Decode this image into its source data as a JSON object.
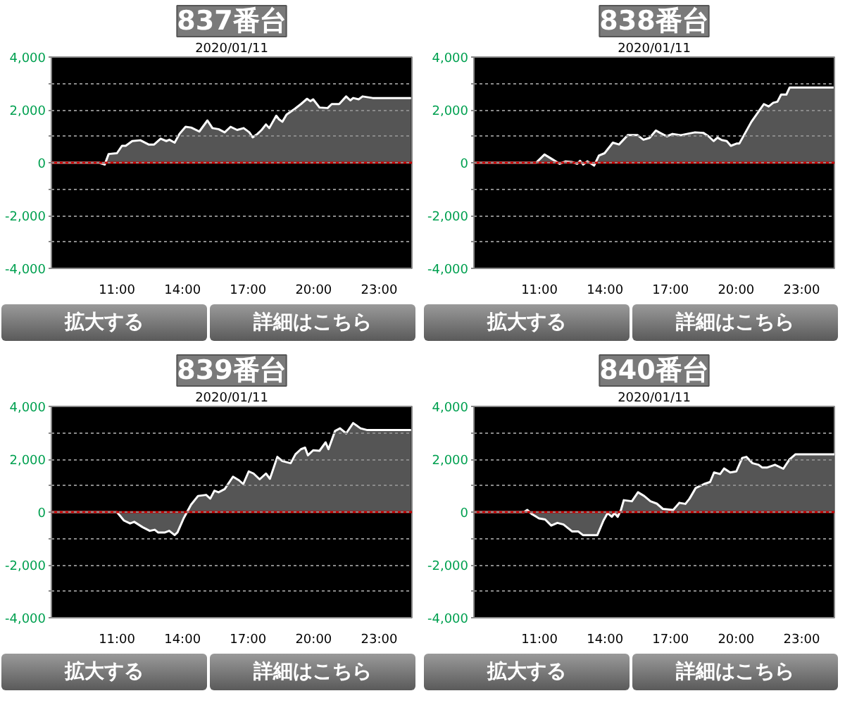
{
  "chart_data": [
    {
      "type": "area",
      "title": "837番台",
      "subtitle": "2020/01/11",
      "annotations": [
        "拡大する",
        "詳細はこちら"
      ],
      "grid": "y",
      "xlim": [
        8,
        24.5
      ],
      "ylim": [
        -4000,
        4000
      ],
      "xticks": [
        {
          "value": 11,
          "label": "11:00"
        },
        {
          "value": 14,
          "label": "14:00"
        },
        {
          "value": 17,
          "label": "17:00"
        },
        {
          "value": 20,
          "label": "20:00"
        },
        {
          "value": 23,
          "label": "23:00"
        }
      ],
      "yticks": [
        {
          "value": -4000,
          "label": "-4,000"
        },
        {
          "value": -3000,
          "label": null
        },
        {
          "value": -2000,
          "label": "-2,000"
        },
        {
          "value": -1000,
          "label": null
        },
        0,
        {
          "value": 1000,
          "label": null
        },
        {
          "value": 2000,
          "label": "2,000"
        },
        {
          "value": 3000,
          "label": null
        },
        {
          "value": 4000,
          "label": "4,000"
        }
      ],
      "ref_lines": [
        {
          "axis": "y",
          "value": 0,
          "color": "#cc0000"
        }
      ],
      "series": [
        {
          "color": "#555555",
          "x": [
            8,
            10.19,
            10.44,
            10.62,
            11,
            11.23,
            11.4,
            11.7,
            12.07,
            12.45,
            12.7,
            13.0,
            13.26,
            13.4,
            13.64,
            13.86,
            14.14,
            14.4,
            14.77,
            15.14,
            15.37,
            15.65,
            15.93,
            16.2,
            16.5,
            16.8,
            17.06,
            17.21,
            17.43,
            17.62,
            17.82,
            17.97,
            18.29,
            18.42,
            18.57,
            18.76,
            19.14,
            19.42,
            19.7,
            19.85,
            19.98,
            20.27,
            20.64,
            20.83,
            21.17,
            21.49,
            21.68,
            21.81,
            22.06,
            22.24,
            22.7,
            24.46
          ],
          "values": [
            0,
            0,
            -70,
            330,
            360,
            640,
            640,
            820,
            850,
            690,
            690,
            910,
            820,
            870,
            760,
            1090,
            1360,
            1330,
            1180,
            1600,
            1310,
            1270,
            1150,
            1360,
            1240,
            1310,
            1150,
            960,
            1090,
            1240,
            1450,
            1310,
            1780,
            1640,
            1550,
            1820,
            2040,
            2220,
            2420,
            2330,
            2400,
            2090,
            2070,
            2220,
            2220,
            2510,
            2360,
            2450,
            2400,
            2510,
            2450,
            2450
          ]
        }
      ]
    },
    {
      "type": "area",
      "title": "838番台",
      "subtitle": "2020/01/11",
      "annotations": [
        "拡大する",
        "詳細はこちら"
      ],
      "grid": "y",
      "xlim": [
        8,
        24.5
      ],
      "ylim": [
        -4000,
        4000
      ],
      "xticks": [
        {
          "value": 11,
          "label": "11:00"
        },
        {
          "value": 14,
          "label": "14:00"
        },
        {
          "value": 17,
          "label": "17:00"
        },
        {
          "value": 20,
          "label": "20:00"
        },
        {
          "value": 23,
          "label": "23:00"
        }
      ],
      "yticks": [
        {
          "value": -4000,
          "label": "-4,000"
        },
        {
          "value": -3000,
          "label": null
        },
        {
          "value": -2000,
          "label": "-2,000"
        },
        {
          "value": -1000,
          "label": null
        },
        0,
        {
          "value": 1000,
          "label": null
        },
        {
          "value": 2000,
          "label": "2,000"
        },
        {
          "value": 3000,
          "label": null
        },
        {
          "value": 4000,
          "label": "4,000"
        }
      ],
      "ref_lines": [
        {
          "axis": "y",
          "value": 0,
          "color": "#cc0000"
        }
      ],
      "series": [
        {
          "color": "#555555",
          "x": [
            8,
            10.85,
            11.23,
            11.55,
            11.92,
            12.2,
            12.48,
            12.73,
            12.86,
            13.0,
            13.19,
            13.38,
            13.5,
            13.72,
            13.98,
            14.36,
            14.64,
            15.05,
            15.48,
            15.76,
            16.04,
            16.33,
            16.52,
            16.83,
            17.09,
            17.47,
            17.75,
            18.12,
            18.5,
            18.74,
            18.97,
            19.15,
            19.34,
            19.57,
            19.76,
            20.04,
            20.15,
            20.7,
            21.27,
            21.49,
            21.7,
            21.89,
            22.06,
            22.3,
            22.45,
            24.46
          ],
          "values": [
            0,
            0,
            310,
            150,
            -40,
            50,
            30,
            -40,
            70,
            -70,
            50,
            -40,
            -110,
            270,
            360,
            760,
            690,
            1050,
            1050,
            870,
            940,
            1220,
            1130,
            1000,
            1090,
            1040,
            1090,
            1150,
            1130,
            1000,
            820,
            950,
            860,
            820,
            640,
            730,
            730,
            1550,
            2220,
            2130,
            2270,
            2310,
            2580,
            2580,
            2850,
            2850
          ]
        }
      ]
    },
    {
      "type": "area",
      "title": "839番台",
      "subtitle": "2020/01/11",
      "annotations": [
        "拡大する",
        "詳細はこちら"
      ],
      "grid": "y",
      "xlim": [
        8,
        24.5
      ],
      "ylim": [
        -4000,
        4000
      ],
      "xticks": [
        {
          "value": 11,
          "label": "11:00"
        },
        {
          "value": 14,
          "label": "14:00"
        },
        {
          "value": 17,
          "label": "17:00"
        },
        {
          "value": 20,
          "label": "20:00"
        },
        {
          "value": 23,
          "label": "23:00"
        }
      ],
      "yticks": [
        {
          "value": -4000,
          "label": "-4,000"
        },
        {
          "value": -3000,
          "label": null
        },
        {
          "value": -2000,
          "label": "-2,000"
        },
        {
          "value": -1000,
          "label": null
        },
        0,
        {
          "value": 1000,
          "label": null
        },
        {
          "value": 2000,
          "label": "2,000"
        },
        {
          "value": 3000,
          "label": null
        },
        {
          "value": 4000,
          "label": "4,000"
        }
      ],
      "ref_lines": [
        {
          "axis": "y",
          "value": 0,
          "color": "#cc0000"
        }
      ],
      "series": [
        {
          "color": "#555555",
          "x": [
            8,
            11,
            11.32,
            11.6,
            11.79,
            12.17,
            12.5,
            12.73,
            12.88,
            13.2,
            13.39,
            13.64,
            13.77,
            14.05,
            14.39,
            14.71,
            15.08,
            15.27,
            15.46,
            15.65,
            15.93,
            16.31,
            16.59,
            16.78,
            17.03,
            17.25,
            17.53,
            17.82,
            18.0,
            18.34,
            18.57,
            18.95,
            19.17,
            19.42,
            19.61,
            19.74,
            19.98,
            20.27,
            20.55,
            20.68,
            20.98,
            21.21,
            21.49,
            21.81,
            22.15,
            22.43,
            24.46
          ],
          "values": [
            0,
            0,
            -320,
            -430,
            -370,
            -570,
            -710,
            -670,
            -770,
            -770,
            -710,
            -870,
            -770,
            -240,
            280,
            610,
            650,
            510,
            810,
            750,
            870,
            1340,
            1200,
            1060,
            1540,
            1460,
            1240,
            1460,
            1260,
            2090,
            1930,
            1850,
            2190,
            2380,
            2440,
            2150,
            2340,
            2320,
            2640,
            2380,
            3070,
            3170,
            2980,
            3370,
            3170,
            3110,
            3110
          ]
        }
      ]
    },
    {
      "type": "area",
      "title": "840番台",
      "subtitle": "2020/01/11",
      "annotations": [
        "拡大する",
        "詳細はこちら"
      ],
      "grid": "y",
      "xlim": [
        8,
        24.5
      ],
      "ylim": [
        -4000,
        4000
      ],
      "xticks": [
        {
          "value": 11,
          "label": "11:00"
        },
        {
          "value": 14,
          "label": "14:00"
        },
        {
          "value": 17,
          "label": "17:00"
        },
        {
          "value": 20,
          "label": "20:00"
        },
        {
          "value": 23,
          "label": "23:00"
        }
      ],
      "yticks": [
        {
          "value": -4000,
          "label": "-4,000"
        },
        {
          "value": -3000,
          "label": null
        },
        {
          "value": -2000,
          "label": "-2,000"
        },
        {
          "value": -1000,
          "label": null
        },
        0,
        {
          "value": 1000,
          "label": null
        },
        {
          "value": 2000,
          "label": "2,000"
        },
        {
          "value": 3000,
          "label": null
        },
        {
          "value": 4000,
          "label": "4,000"
        }
      ],
      "ref_lines": [
        {
          "axis": "y",
          "value": 0,
          "color": "#cc0000"
        }
      ],
      "series": [
        {
          "color": "#555555",
          "x": [
            8,
            10.29,
            10.44,
            10.66,
            10.98,
            11.26,
            11.54,
            11.82,
            12.1,
            12.49,
            12.77,
            12.99,
            13.65,
            13.93,
            14.12,
            14.31,
            14.44,
            14.58,
            14.73,
            14.86,
            15.23,
            15.51,
            15.79,
            16.08,
            16.37,
            16.65,
            17.12,
            17.4,
            17.68,
            17.87,
            18.15,
            18.53,
            18.81,
            18.99,
            19.27,
            19.45,
            19.73,
            20.01,
            20.28,
            20.47,
            20.75,
            21.03,
            21.19,
            21.43,
            21.78,
            22.16,
            22.44,
            22.72,
            24.5
          ],
          "values": [
            0,
            0,
            80,
            -80,
            -240,
            -280,
            -510,
            -410,
            -470,
            -730,
            -730,
            -870,
            -870,
            -320,
            -40,
            -180,
            -40,
            -180,
            80,
            450,
            410,
            750,
            610,
            410,
            320,
            120,
            80,
            350,
            310,
            510,
            910,
            1060,
            1140,
            1500,
            1440,
            1650,
            1500,
            1540,
            2050,
            2090,
            1850,
            1790,
            1690,
            1690,
            1790,
            1640,
            1990,
            2190,
            2190
          ]
        }
      ]
    }
  ]
}
